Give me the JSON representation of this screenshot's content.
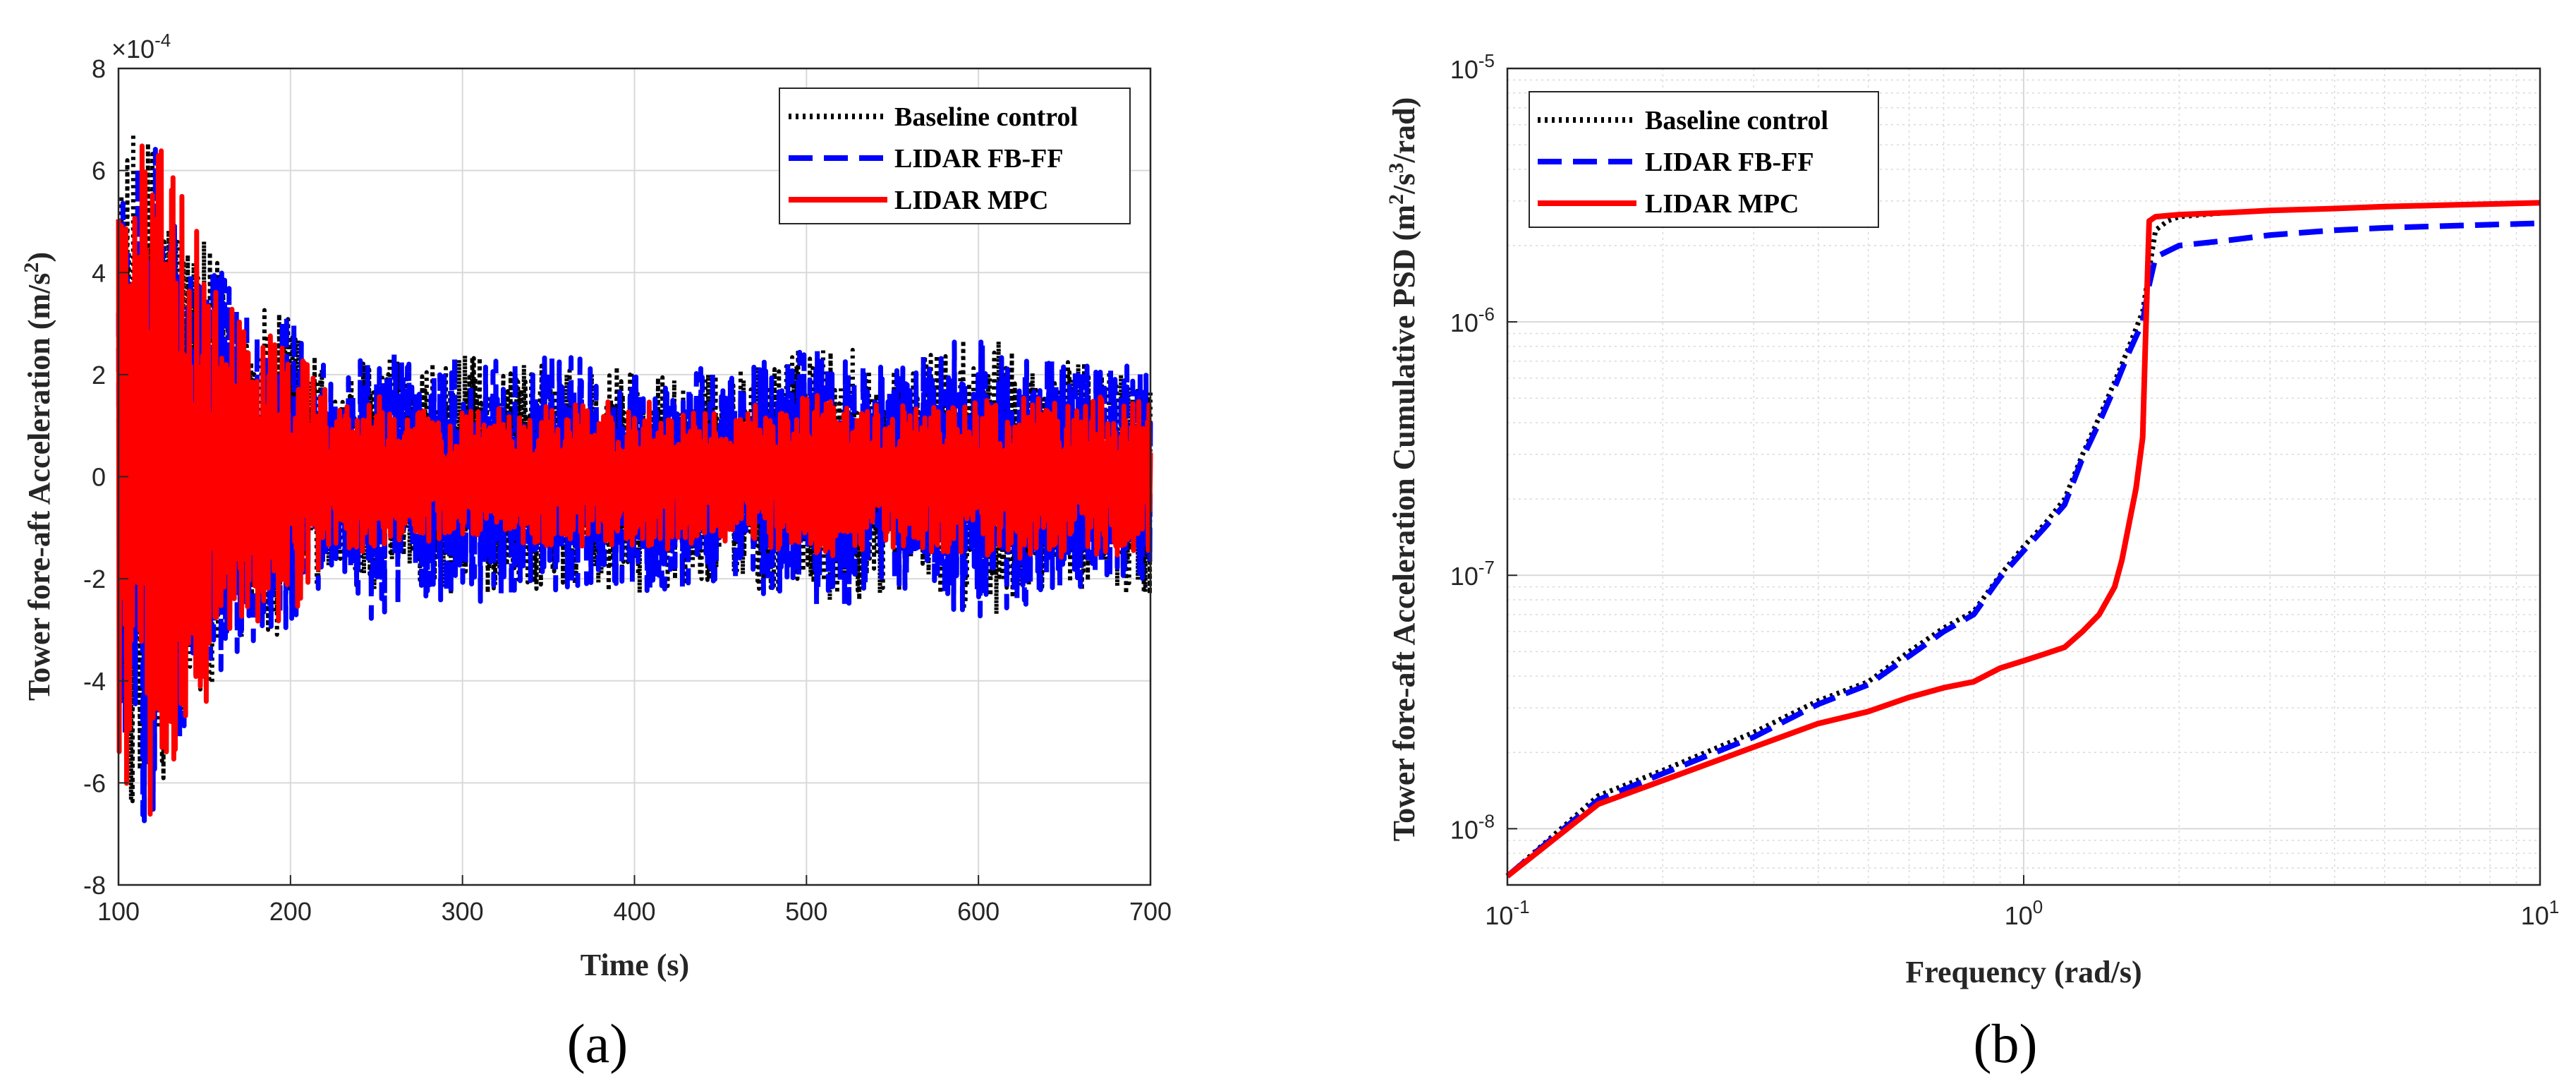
{
  "figure": {
    "panel_labels": [
      "(a)",
      "(b)"
    ]
  },
  "colors": {
    "baseline": "#000000",
    "fbff": "#0000ff",
    "mpc": "#ff0000",
    "grid": "#d9d9d9",
    "axis": "#262626"
  },
  "chart_data": [
    {
      "id": "a",
      "type": "line",
      "title": "",
      "xlabel": "Time (s)",
      "ylabel": "Tower fore-aft Acceleration (m/s²)",
      "ylabel_parts": {
        "main": "Tower fore-aft Acceleration (m/s",
        "sup": "2",
        "close": ")"
      },
      "exponent_label": {
        "base": "×10",
        "exp": "-4"
      },
      "xlim": [
        100,
        700
      ],
      "ylim": [
        -8,
        8
      ],
      "y_scale_note": "values in units of 1e-4 m/s^2",
      "xticks": [
        100,
        200,
        300,
        400,
        500,
        600,
        700
      ],
      "xtick_labels": [
        "100",
        "200",
        "300",
        "400",
        "500",
        "600",
        "700"
      ],
      "yticks": [
        -8,
        -6,
        -4,
        -2,
        0,
        2,
        4,
        6,
        8
      ],
      "ytick_labels": [
        "-8",
        "-6",
        "-4",
        "-2",
        "0",
        "2",
        "4",
        "6",
        "8"
      ],
      "grid": true,
      "legend_position": "top-right",
      "series": [
        {
          "name": "Baseline control",
          "style": "dotted",
          "envelope_t": [
            100,
            110,
            120,
            130,
            140,
            150,
            160,
            170,
            180,
            190,
            200,
            210,
            220,
            230,
            250,
            270,
            300,
            350,
            400,
            450,
            500,
            520,
            550,
            600,
            650,
            700
          ],
          "envelope_amp": [
            6.0,
            6.9,
            6.9,
            6.2,
            5.0,
            4.6,
            4.2,
            3.5,
            3.4,
            3.2,
            3.3,
            2.7,
            2.2,
            1.8,
            2.7,
            2.1,
            2.4,
            2.2,
            2.3,
            2.0,
            2.6,
            2.7,
            2.2,
            2.8,
            2.3,
            2.3
          ]
        },
        {
          "name": "LIDAR FB-FF",
          "style": "dashed",
          "envelope_t": [
            100,
            110,
            120,
            130,
            140,
            150,
            160,
            170,
            180,
            190,
            200,
            210,
            220,
            230,
            250,
            270,
            300,
            350,
            400,
            450,
            500,
            520,
            550,
            600,
            650,
            700
          ],
          "envelope_amp": [
            6.0,
            6.9,
            6.9,
            6.2,
            5.0,
            4.4,
            4.0,
            3.4,
            3.2,
            3.1,
            3.2,
            2.6,
            2.2,
            1.9,
            3.1,
            2.3,
            2.5,
            2.4,
            2.3,
            2.1,
            2.5,
            2.6,
            2.1,
            2.9,
            2.2,
            2.2
          ]
        },
        {
          "name": "LIDAR MPC",
          "style": "solid",
          "envelope_t": [
            100,
            110,
            120,
            130,
            140,
            150,
            160,
            170,
            180,
            190,
            200,
            210,
            220,
            230,
            250,
            270,
            300,
            350,
            400,
            450,
            500,
            520,
            550,
            600,
            650,
            700
          ],
          "envelope_amp": [
            6.5,
            7.1,
            7.2,
            6.4,
            5.3,
            4.6,
            4.0,
            3.3,
            3.1,
            2.9,
            2.8,
            2.2,
            1.8,
            1.5,
            1.6,
            1.3,
            1.3,
            1.4,
            1.5,
            1.3,
            1.6,
            1.6,
            1.4,
            1.6,
            1.6,
            1.6
          ]
        }
      ]
    },
    {
      "id": "b",
      "type": "line",
      "title": "",
      "xlabel": "Frequency (rad/s)",
      "ylabel": "Tower fore-aft Acceleration Cumulative PSD (m²/s³/rad)",
      "ylabel_parts": {
        "main": "Tower fore-aft Acceleration Cumulative PSD (m",
        "sup1": "2",
        "mid": "/s",
        "sup2": "3",
        "close": "/rad)"
      },
      "x_scale": "log",
      "y_scale": "log",
      "xlim": [
        0.1,
        10
      ],
      "ylim": [
        6e-09,
        1e-05
      ],
      "xticks": [
        0.1,
        1,
        10
      ],
      "xtick_labels": [
        {
          "base": "10",
          "exp": "-1"
        },
        {
          "base": "10",
          "exp": "0"
        },
        {
          "base": "10",
          "exp": "1"
        }
      ],
      "yticks": [
        1e-08,
        1e-07,
        1e-06,
        1e-05
      ],
      "ytick_labels": [
        {
          "base": "10",
          "exp": "-8"
        },
        {
          "base": "10",
          "exp": "-7"
        },
        {
          "base": "10",
          "exp": "-6"
        },
        {
          "base": "10",
          "exp": "-5"
        }
      ],
      "grid": true,
      "minor_grid": true,
      "legend_position": "top-left",
      "series": [
        {
          "name": "Baseline control",
          "style": "dotted",
          "x": [
            0.1,
            0.15,
            0.2,
            0.3,
            0.4,
            0.5,
            0.6,
            0.7,
            0.8,
            0.9,
            1.0,
            1.1,
            1.2,
            1.3,
            1.4,
            1.5,
            1.6,
            1.7,
            1.75,
            1.8,
            1.9,
            2.0,
            2.5,
            3,
            4,
            5,
            7,
            10
          ],
          "y": [
            6.5e-09,
            1.35e-08,
            1.7e-08,
            2.4e-08,
            3.2e-08,
            3.8e-08,
            5e-08,
            6.2e-08,
            7.2e-08,
            1e-07,
            1.3e-07,
            1.6e-07,
            2e-07,
            3e-07,
            4.2e-07,
            5.8e-07,
            8e-07,
            1.1e-06,
            1.6e-06,
            2.3e-06,
            2.5e-06,
            2.6e-06,
            2.7e-06,
            2.75e-06,
            2.8e-06,
            2.85e-06,
            2.9e-06,
            2.95e-06
          ]
        },
        {
          "name": "LIDAR FB-FF",
          "style": "dashed",
          "x": [
            0.1,
            0.15,
            0.2,
            0.3,
            0.4,
            0.5,
            0.6,
            0.7,
            0.8,
            0.9,
            1.0,
            1.1,
            1.2,
            1.3,
            1.4,
            1.5,
            1.6,
            1.7,
            1.75,
            1.8,
            1.9,
            2.0,
            2.5,
            3,
            4,
            5,
            7,
            10
          ],
          "y": [
            6.5e-09,
            1.3e-08,
            1.65e-08,
            2.3e-08,
            3.1e-08,
            3.7e-08,
            4.8e-08,
            6e-08,
            7e-08,
            9.8e-08,
            1.25e-07,
            1.55e-07,
            1.9e-07,
            2.9e-07,
            4e-07,
            5.5e-07,
            7.6e-07,
            1e-06,
            1.4e-06,
            1.8e-06,
            1.9e-06,
            2e-06,
            2.1e-06,
            2.2e-06,
            2.3e-06,
            2.35e-06,
            2.4e-06,
            2.45e-06
          ]
        },
        {
          "name": "LIDAR MPC",
          "style": "solid",
          "x": [
            0.1,
            0.15,
            0.2,
            0.3,
            0.4,
            0.5,
            0.6,
            0.7,
            0.8,
            0.9,
            1.0,
            1.1,
            1.2,
            1.3,
            1.4,
            1.5,
            1.55,
            1.6,
            1.65,
            1.7,
            1.72,
            1.75,
            1.8,
            2.0,
            2.5,
            3,
            4,
            5,
            7,
            10
          ],
          "y": [
            6.5e-09,
            1.25e-08,
            1.55e-08,
            2.1e-08,
            2.6e-08,
            2.9e-08,
            3.3e-08,
            3.6e-08,
            3.8e-08,
            4.3e-08,
            4.6e-08,
            4.9e-08,
            5.2e-08,
            6e-08,
            7e-08,
            9e-08,
            1.15e-07,
            1.6e-07,
            2.2e-07,
            3.5e-07,
            8e-07,
            2.5e-06,
            2.6e-06,
            2.65e-06,
            2.7e-06,
            2.75e-06,
            2.8e-06,
            2.85e-06,
            2.9e-06,
            2.95e-06
          ]
        }
      ]
    }
  ]
}
